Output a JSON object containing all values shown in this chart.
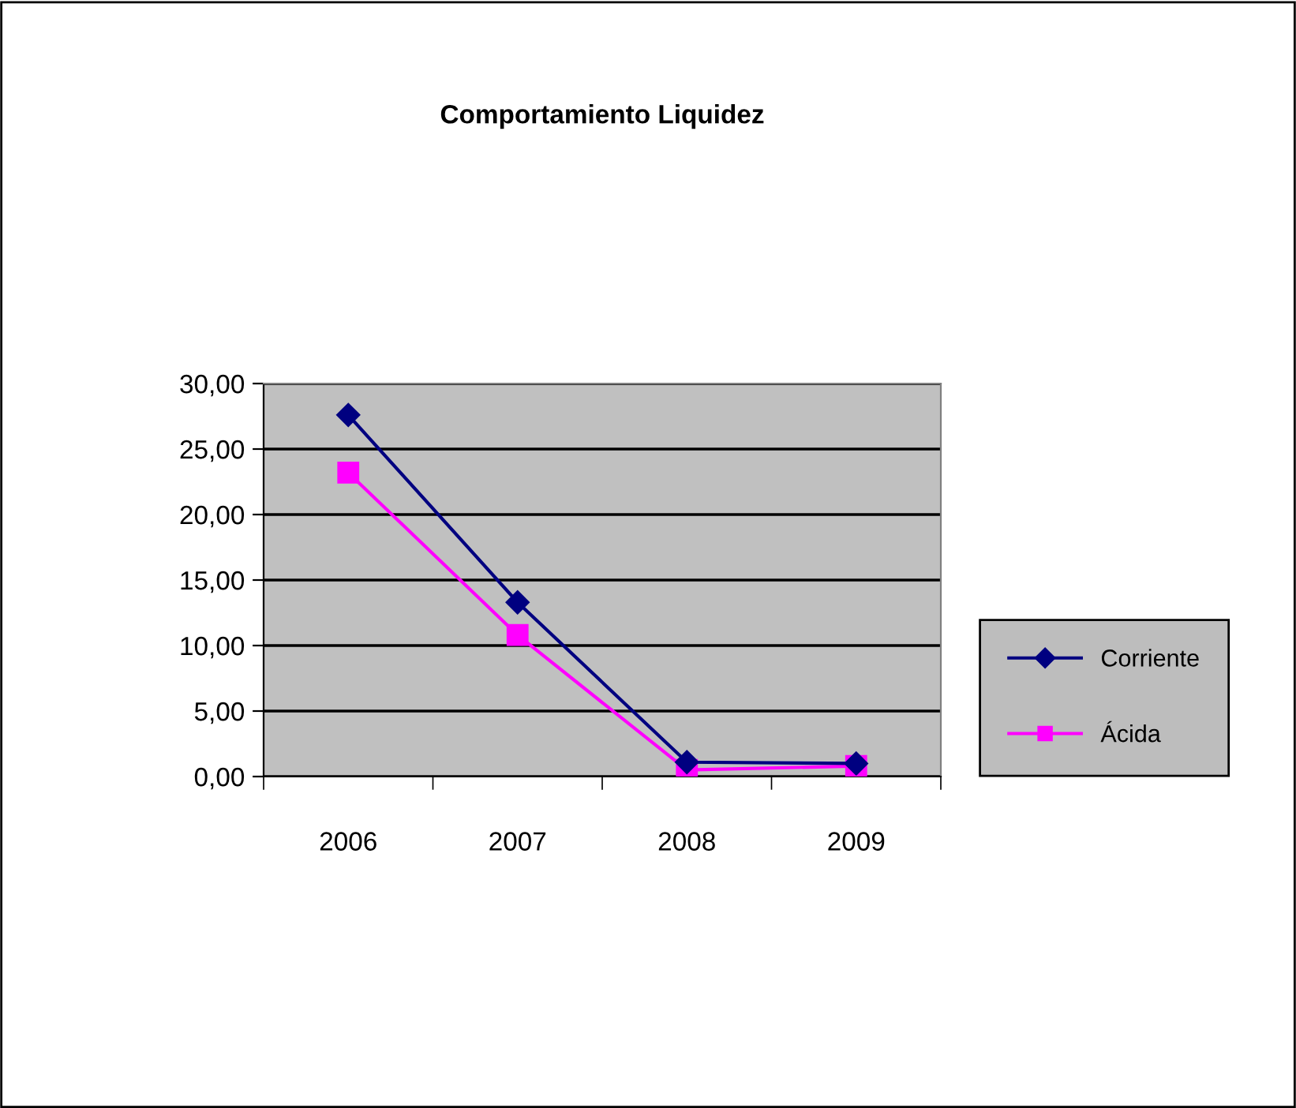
{
  "chart_data": {
    "type": "line",
    "title": "Comportamiento Liquidez",
    "categories": [
      "2006",
      "2007",
      "2008",
      "2009"
    ],
    "series": [
      {
        "name": "Corriente",
        "color": "#000080",
        "values": [
          27.6,
          13.3,
          1.1,
          1.0
        ],
        "marker": "diamond"
      },
      {
        "name": "Ácida",
        "color": "#ff00ff",
        "values": [
          23.2,
          10.8,
          0.5,
          0.8
        ],
        "marker": "square"
      }
    ],
    "ylim": [
      0,
      30
    ],
    "yticks": [
      {
        "value": 0,
        "label": "0,00"
      },
      {
        "value": 5,
        "label": "5,00"
      },
      {
        "value": 10,
        "label": "10,00"
      },
      {
        "value": 15,
        "label": "15,00"
      },
      {
        "value": 20,
        "label": "20,00"
      },
      {
        "value": 25,
        "label": "25,00"
      },
      {
        "value": 30,
        "label": "30,00"
      }
    ],
    "grid": "y",
    "legend": "right",
    "line_style": "solid"
  }
}
